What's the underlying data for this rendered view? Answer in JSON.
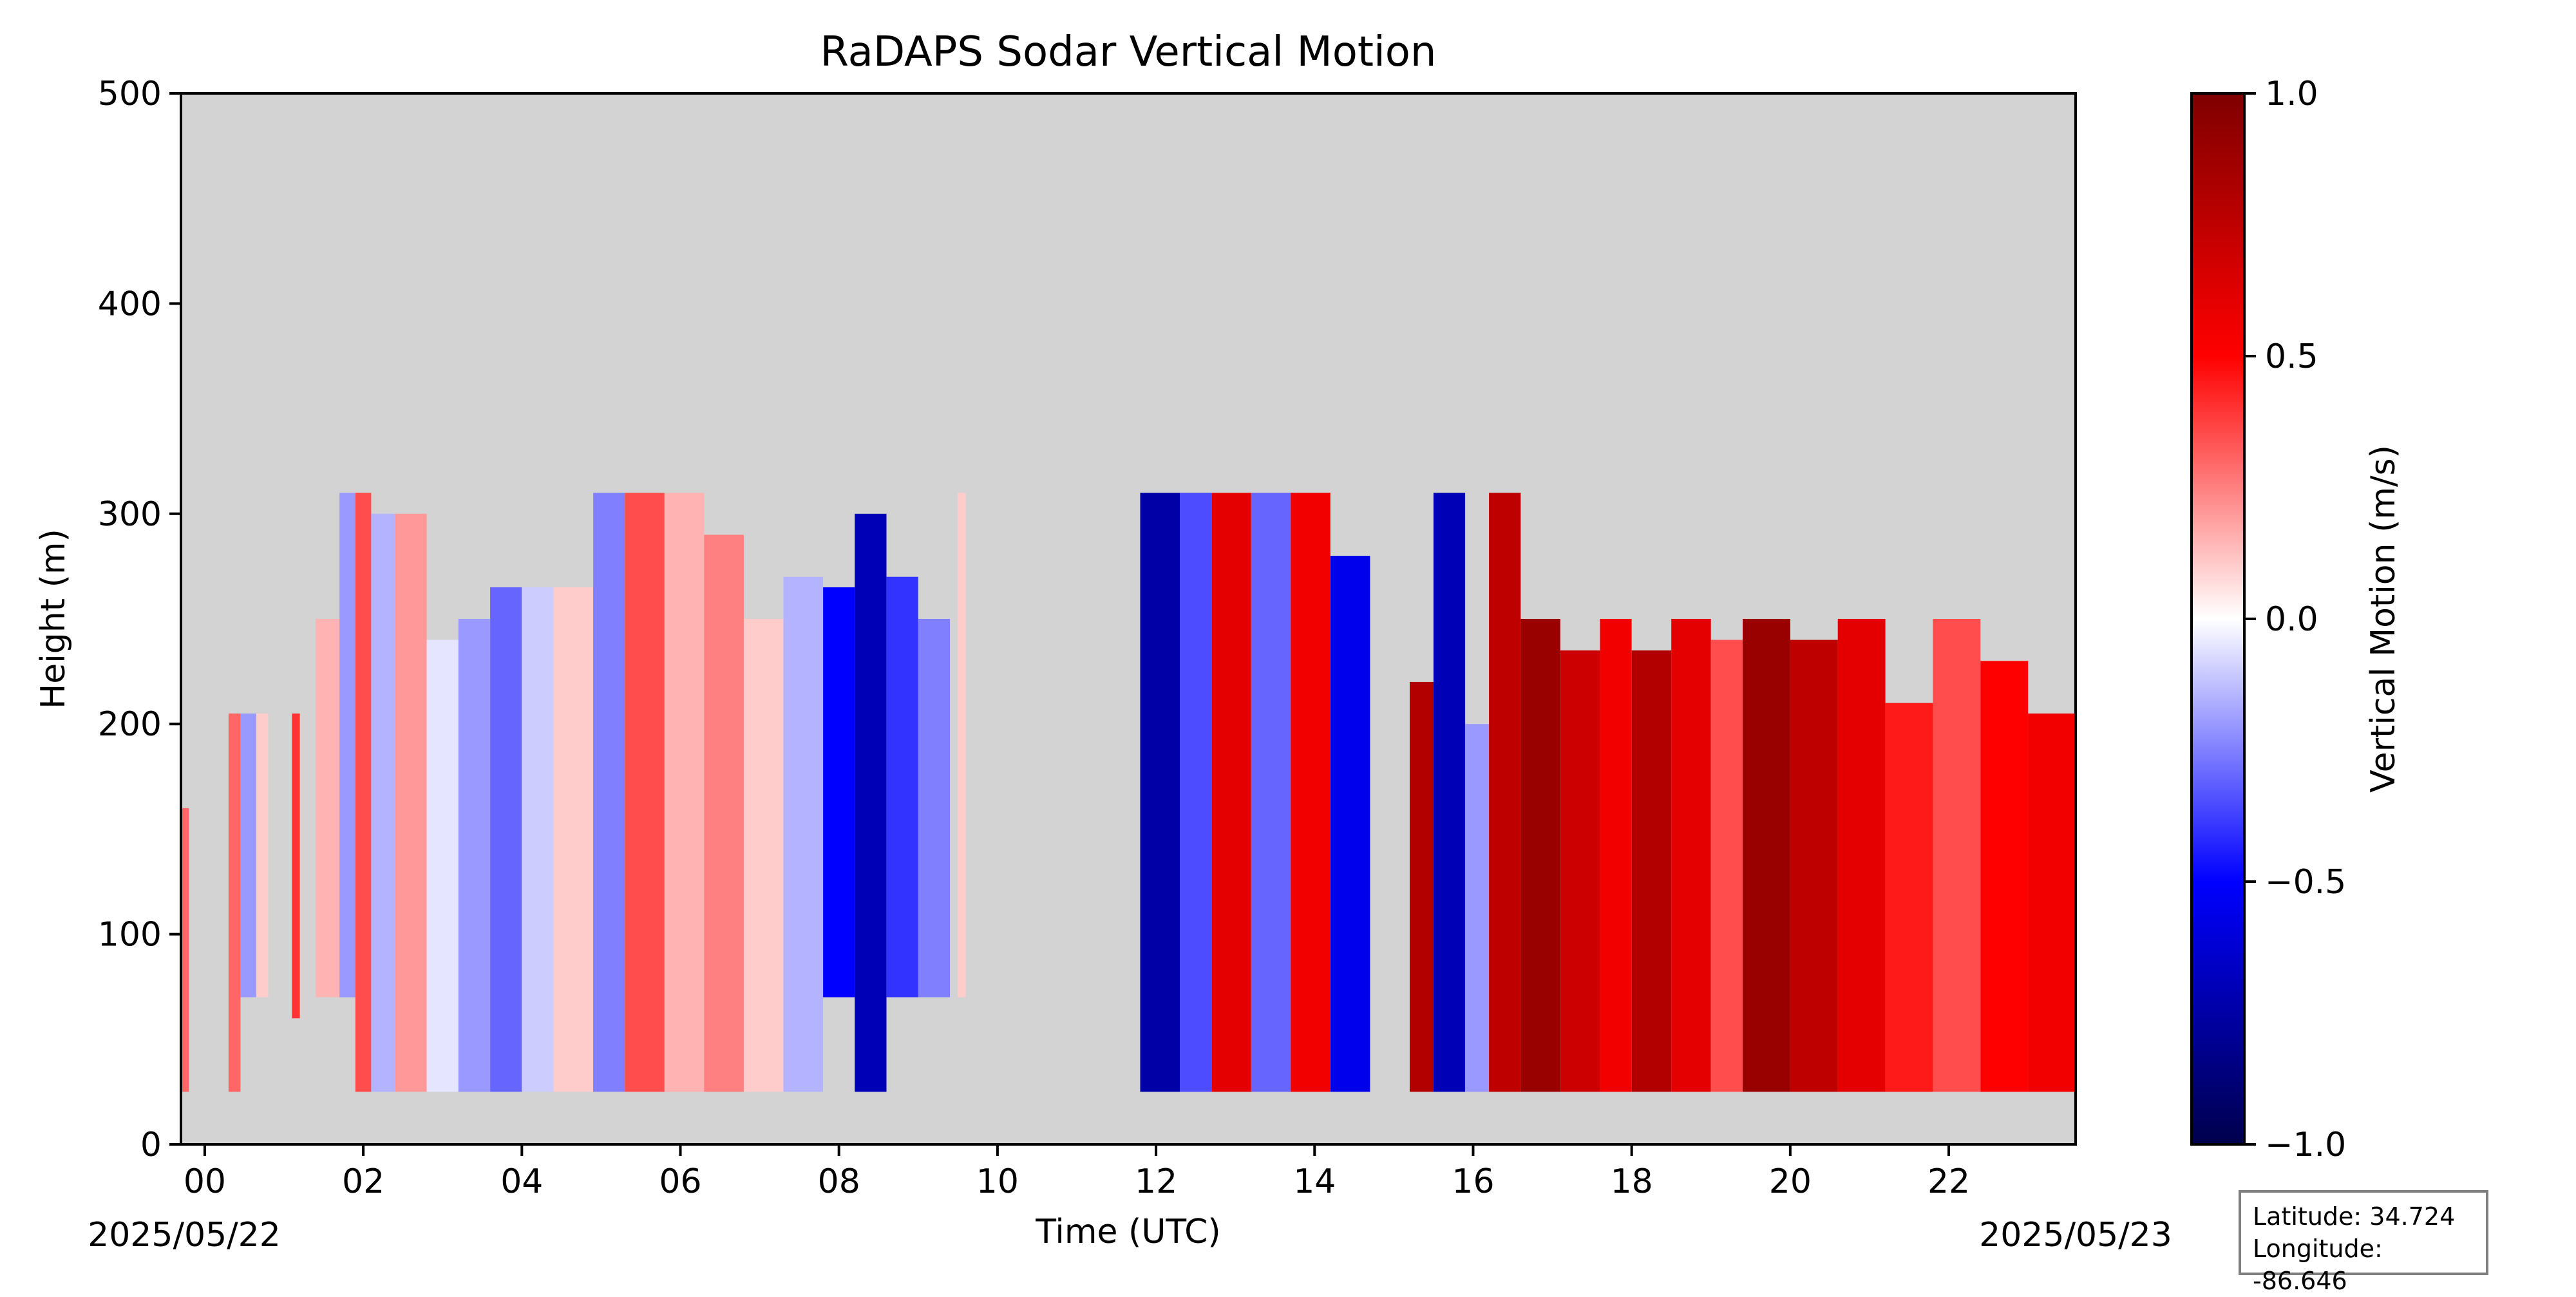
{
  "chart_data": {
    "type": "heatmap",
    "title": "RaDAPS Sodar Vertical Motion",
    "xlabel": "Time (UTC)",
    "ylabel": "Height (m)",
    "x_unit": "hour UTC",
    "xlim": [
      -0.3,
      23.6
    ],
    "ylim": [
      0,
      500
    ],
    "x_tick_labels": [
      "00",
      "02",
      "04",
      "06",
      "08",
      "10",
      "12",
      "14",
      "16",
      "18",
      "20",
      "22"
    ],
    "y_tick_labels": [
      "0",
      "100",
      "200",
      "300",
      "400",
      "500"
    ],
    "date_labels": {
      "start": "2025/05/22",
      "end": "2025/05/23"
    },
    "colorbar": {
      "label": "Vertical Motion (m/s)",
      "range": [
        -1.0,
        1.0
      ],
      "tick_labels": [
        "1.0",
        "0.5",
        "0.0",
        "−0.5",
        "−1.0"
      ],
      "colormap": "seismic"
    },
    "background_color": "#d3d3d3",
    "grid": false,
    "columns": [
      {
        "t0": -0.3,
        "t1": -0.2,
        "bottom": 25,
        "top": 160,
        "w": 0.3
      },
      {
        "t0": 0.3,
        "t1": 0.45,
        "bottom": 25,
        "top": 205,
        "w": 0.3
      },
      {
        "t0": 0.45,
        "t1": 0.65,
        "bottom": 70,
        "top": 205,
        "w": -0.2
      },
      {
        "t0": 0.65,
        "t1": 0.8,
        "bottom": 70,
        "top": 205,
        "w": 0.1
      },
      {
        "t0": 1.1,
        "t1": 1.2,
        "bottom": 60,
        "top": 205,
        "w": 0.4
      },
      {
        "t0": 1.4,
        "t1": 1.7,
        "bottom": 70,
        "top": 250,
        "w": 0.15
      },
      {
        "t0": 1.7,
        "t1": 1.9,
        "bottom": 70,
        "top": 310,
        "w": -0.2
      },
      {
        "t0": 1.9,
        "t1": 2.1,
        "bottom": 25,
        "top": 310,
        "w": 0.35
      },
      {
        "t0": 2.1,
        "t1": 2.4,
        "bottom": 25,
        "top": 300,
        "w": -0.15
      },
      {
        "t0": 2.4,
        "t1": 2.8,
        "bottom": 25,
        "top": 300,
        "w": 0.2
      },
      {
        "t0": 2.8,
        "t1": 3.2,
        "bottom": 25,
        "top": 240,
        "w": -0.05
      },
      {
        "t0": 3.2,
        "t1": 3.6,
        "bottom": 25,
        "top": 250,
        "w": -0.2
      },
      {
        "t0": 3.6,
        "t1": 4.0,
        "bottom": 25,
        "top": 265,
        "w": -0.3
      },
      {
        "t0": 4.0,
        "t1": 4.4,
        "bottom": 25,
        "top": 265,
        "w": -0.1
      },
      {
        "t0": 4.4,
        "t1": 4.9,
        "bottom": 25,
        "top": 265,
        "w": 0.1
      },
      {
        "t0": 4.9,
        "t1": 5.3,
        "bottom": 25,
        "top": 310,
        "w": -0.25
      },
      {
        "t0": 5.3,
        "t1": 5.8,
        "bottom": 25,
        "top": 310,
        "w": 0.35
      },
      {
        "t0": 5.8,
        "t1": 6.3,
        "bottom": 25,
        "top": 310,
        "w": 0.15
      },
      {
        "t0": 6.3,
        "t1": 6.8,
        "bottom": 25,
        "top": 290,
        "w": 0.25
      },
      {
        "t0": 6.8,
        "t1": 7.3,
        "bottom": 25,
        "top": 250,
        "w": 0.1
      },
      {
        "t0": 7.3,
        "t1": 7.8,
        "bottom": 25,
        "top": 270,
        "w": -0.15
      },
      {
        "t0": 7.8,
        "t1": 8.2,
        "bottom": 70,
        "top": 265,
        "w": -0.5
      },
      {
        "t0": 8.2,
        "t1": 8.6,
        "bottom": 25,
        "top": 300,
        "w": -0.7
      },
      {
        "t0": 8.6,
        "t1": 9.0,
        "bottom": 70,
        "top": 270,
        "w": -0.4
      },
      {
        "t0": 9.0,
        "t1": 9.4,
        "bottom": 70,
        "top": 250,
        "w": -0.25
      },
      {
        "t0": 9.5,
        "t1": 9.6,
        "bottom": 70,
        "top": 310,
        "w": 0.1
      },
      {
        "t0": 11.8,
        "t1": 12.3,
        "bottom": 25,
        "top": 310,
        "w": -0.75
      },
      {
        "t0": 12.3,
        "t1": 12.7,
        "bottom": 25,
        "top": 310,
        "w": -0.35
      },
      {
        "t0": 12.7,
        "t1": 13.2,
        "bottom": 25,
        "top": 310,
        "w": 0.6
      },
      {
        "t0": 13.2,
        "t1": 13.7,
        "bottom": 25,
        "top": 310,
        "w": -0.3
      },
      {
        "t0": 13.7,
        "t1": 14.2,
        "bottom": 25,
        "top": 310,
        "w": 0.55
      },
      {
        "t0": 14.2,
        "t1": 14.7,
        "bottom": 25,
        "top": 280,
        "w": -0.55
      },
      {
        "t0": 15.2,
        "t1": 15.5,
        "bottom": 25,
        "top": 220,
        "w": 0.8
      },
      {
        "t0": 15.5,
        "t1": 15.9,
        "bottom": 25,
        "top": 310,
        "w": -0.7
      },
      {
        "t0": 15.9,
        "t1": 16.2,
        "bottom": 25,
        "top": 200,
        "w": -0.2
      },
      {
        "t0": 16.2,
        "t1": 16.6,
        "bottom": 25,
        "top": 310,
        "w": 0.75
      },
      {
        "t0": 16.6,
        "t1": 17.1,
        "bottom": 25,
        "top": 250,
        "w": 0.9
      },
      {
        "t0": 17.1,
        "t1": 17.6,
        "bottom": 25,
        "top": 235,
        "w": 0.7
      },
      {
        "t0": 17.6,
        "t1": 18.0,
        "bottom": 25,
        "top": 250,
        "w": 0.55
      },
      {
        "t0": 18.0,
        "t1": 18.5,
        "bottom": 25,
        "top": 235,
        "w": 0.8
      },
      {
        "t0": 18.5,
        "t1": 19.0,
        "bottom": 25,
        "top": 250,
        "w": 0.6
      },
      {
        "t0": 19.0,
        "t1": 19.4,
        "bottom": 25,
        "top": 240,
        "w": 0.35
      },
      {
        "t0": 19.4,
        "t1": 20.0,
        "bottom": 25,
        "top": 250,
        "w": 0.9
      },
      {
        "t0": 20.0,
        "t1": 20.6,
        "bottom": 25,
        "top": 240,
        "w": 0.75
      },
      {
        "t0": 20.6,
        "t1": 21.2,
        "bottom": 25,
        "top": 250,
        "w": 0.6
      },
      {
        "t0": 21.2,
        "t1": 21.8,
        "bottom": 25,
        "top": 210,
        "w": 0.45
      },
      {
        "t0": 21.8,
        "t1": 22.4,
        "bottom": 25,
        "top": 250,
        "w": 0.35
      },
      {
        "t0": 22.4,
        "t1": 23.0,
        "bottom": 25,
        "top": 230,
        "w": 0.5
      },
      {
        "t0": 23.0,
        "t1": 23.6,
        "bottom": 25,
        "top": 205,
        "w": 0.55
      }
    ]
  },
  "info": {
    "latitude": "Latitude: 34.724",
    "longitude": "Longitude: -86.646"
  }
}
